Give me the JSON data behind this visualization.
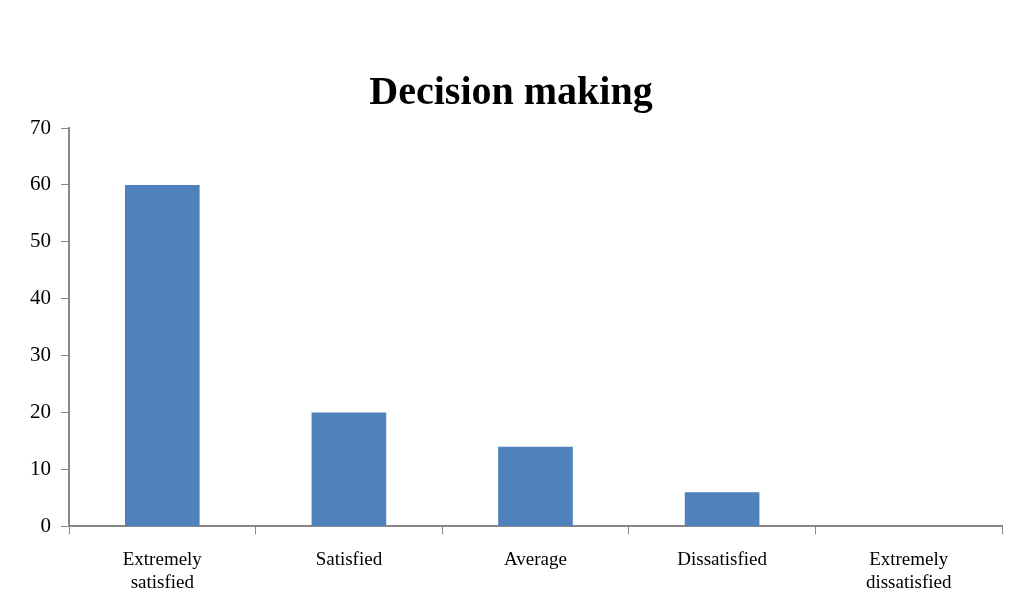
{
  "chart_data": {
    "type": "bar",
    "title": "Decision making",
    "categories": [
      "Extremely satisfied",
      "Satisfied",
      "Average",
      "Dissatisfied",
      "Extremely dissatisfied"
    ],
    "values": [
      60,
      20,
      14,
      6,
      0
    ],
    "color": "#4f81bd",
    "ylim": [
      0,
      70
    ],
    "yticks": [
      0,
      10,
      20,
      30,
      40,
      50,
      60,
      70
    ],
    "grid": false,
    "legend": false
  }
}
